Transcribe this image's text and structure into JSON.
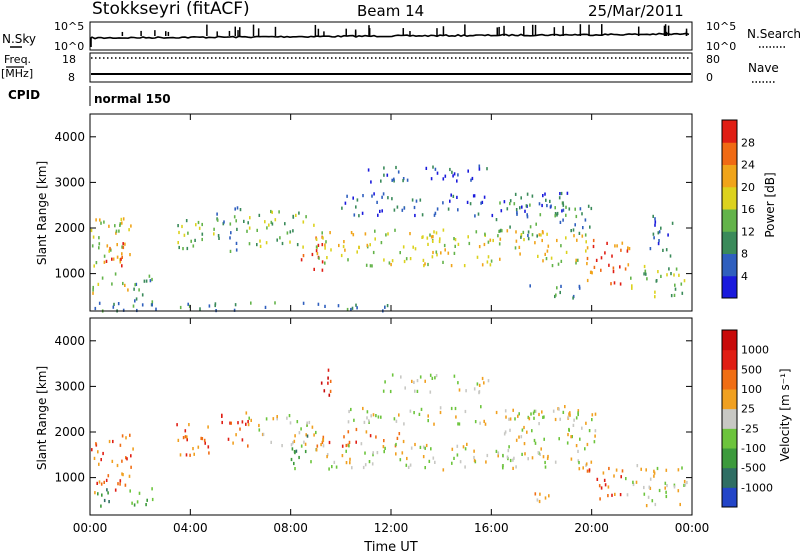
{
  "header": {
    "station": "Stokkseyri (fitACF)",
    "beam": "Beam 14",
    "date": "25/Mar/2011"
  },
  "panels": {
    "nsky": {
      "left_label": "N.Sky",
      "right_label": "N.Search",
      "left_ticks": [
        "10^5",
        "10^0"
      ],
      "right_ticks": [
        "10^5",
        "10^0"
      ]
    },
    "freq": {
      "left_label_1": "Freq.",
      "left_label_2": "[MHz]",
      "left_ticks": [
        "18",
        "8"
      ],
      "right_label": "Nave",
      "right_ticks": [
        "80",
        "0"
      ]
    },
    "cpid": {
      "label": "CPID",
      "value": "normal 150"
    }
  },
  "chart_data": [
    {
      "type": "heatmap",
      "name": "power",
      "ylabel": "Slant Range [km]",
      "xlabel": "",
      "x_ticks": [
        "00:00",
        "04:00",
        "08:00",
        "12:00",
        "16:00",
        "20:00",
        "00:00"
      ],
      "y_ticks": [
        1000,
        2000,
        3000,
        4000
      ],
      "xlim_hours": [
        0,
        24
      ],
      "ylim_km": [
        180,
        4500
      ],
      "colorbar": {
        "label": "Power [dB]",
        "ticks": [
          "4",
          "8",
          "12",
          "16",
          "20",
          "24",
          "28"
        ],
        "colors": [
          "#1a1adc",
          "#2f5fbe",
          "#3a8a5a",
          "#63b34a",
          "#dcd21e",
          "#f0a41a",
          "#f06a14",
          "#e01e14"
        ]
      },
      "bands": [
        {
          "t0": 0.0,
          "t1": 1.7,
          "r0": 600,
          "r1": 2300,
          "level": 4
        },
        {
          "t0": 0.6,
          "t1": 1.4,
          "r0": 1200,
          "r1": 1800,
          "level": 6
        },
        {
          "t0": 1.5,
          "t1": 2.6,
          "r0": 300,
          "r1": 1000,
          "level": 2
        },
        {
          "t0": 3.3,
          "t1": 5.1,
          "r0": 1500,
          "r1": 2200,
          "level": 3
        },
        {
          "t0": 5.0,
          "t1": 6.3,
          "r0": 1500,
          "r1": 2500,
          "level": 2
        },
        {
          "t0": 6.3,
          "t1": 8.9,
          "r0": 1600,
          "r1": 2400,
          "level": 3
        },
        {
          "t0": 8.4,
          "t1": 9.3,
          "r0": 1100,
          "r1": 1900,
          "level": 7
        },
        {
          "t0": 9.0,
          "t1": 20.0,
          "r0": 1200,
          "r1": 2000,
          "level": 4
        },
        {
          "t0": 10.0,
          "t1": 19.0,
          "r0": 2300,
          "r1": 2800,
          "level": 1
        },
        {
          "t0": 11.0,
          "t1": 16.0,
          "r0": 3000,
          "r1": 3400,
          "level": 1
        },
        {
          "t0": 16.0,
          "t1": 20.0,
          "r0": 1800,
          "r1": 2600,
          "level": 2
        },
        {
          "t0": 17.5,
          "t1": 19.5,
          "r0": 500,
          "r1": 800,
          "level": 2
        },
        {
          "t0": 19.8,
          "t1": 21.5,
          "r0": 700,
          "r1": 1800,
          "level": 6
        },
        {
          "t0": 21.5,
          "t1": 23.8,
          "r0": 500,
          "r1": 1200,
          "level": 3
        },
        {
          "t0": 22.3,
          "t1": 23.3,
          "r0": 1400,
          "r1": 2400,
          "level": 1
        },
        {
          "t0": 0.0,
          "t1": 12.0,
          "r0": 200,
          "r1": 400,
          "level": 2
        }
      ]
    },
    {
      "type": "heatmap",
      "name": "velocity",
      "ylabel": "Slant Range [km]",
      "xlabel": "Time UT",
      "x_ticks": [
        "00:00",
        "04:00",
        "08:00",
        "12:00",
        "16:00",
        "20:00",
        "00:00"
      ],
      "y_ticks": [
        1000,
        2000,
        3000,
        4000
      ],
      "xlim_hours": [
        0,
        24
      ],
      "ylim_km": [
        180,
        4500
      ],
      "colorbar": {
        "label": "Velocity [m s⁻¹]",
        "ticks": [
          "1000",
          "500",
          "100",
          "25",
          "-25",
          "-100",
          "-500",
          "-1000"
        ],
        "colors": [
          "#2345c8",
          "#2f6e64",
          "#3c9a3c",
          "#6cc43c",
          "#c8c8c4",
          "#f0a020",
          "#f06e14",
          "#e01e14",
          "#c80a0a"
        ]
      },
      "bands": [
        {
          "t0": 0.0,
          "t1": 1.7,
          "r0": 700,
          "r1": 2000,
          "level": 6
        },
        {
          "t0": 0.0,
          "t1": 0.8,
          "r0": 400,
          "r1": 900,
          "level": 2
        },
        {
          "t0": 1.2,
          "t1": 2.5,
          "r0": 400,
          "r1": 800,
          "level": 3
        },
        {
          "t0": 3.3,
          "t1": 5.1,
          "r0": 1500,
          "r1": 2200,
          "level": 6
        },
        {
          "t0": 5.0,
          "t1": 6.3,
          "r0": 1700,
          "r1": 2500,
          "level": 6
        },
        {
          "t0": 6.3,
          "t1": 9.0,
          "r0": 1700,
          "r1": 2400,
          "level": 4
        },
        {
          "t0": 8.0,
          "t1": 9.0,
          "r0": 1200,
          "r1": 2000,
          "level": 2
        },
        {
          "t0": 9.0,
          "t1": 12.5,
          "r0": 1700,
          "r1": 2100,
          "level": 6
        },
        {
          "t0": 9.0,
          "t1": 20.0,
          "r0": 1200,
          "r1": 1800,
          "level": 4
        },
        {
          "t0": 10.0,
          "t1": 19.5,
          "r0": 2200,
          "r1": 2600,
          "level": 4
        },
        {
          "t0": 11.5,
          "t1": 16.0,
          "r0": 2900,
          "r1": 3300,
          "level": 4
        },
        {
          "t0": 9.2,
          "t1": 9.7,
          "r0": 2600,
          "r1": 3500,
          "level": 7
        },
        {
          "t0": 16.5,
          "t1": 20.2,
          "r0": 1800,
          "r1": 2500,
          "level": 4
        },
        {
          "t0": 17.5,
          "t1": 18.6,
          "r0": 500,
          "r1": 800,
          "level": 5
        },
        {
          "t0": 19.8,
          "t1": 21.3,
          "r0": 500,
          "r1": 1300,
          "level": 6
        },
        {
          "t0": 21.3,
          "t1": 23.8,
          "r0": 400,
          "r1": 1300,
          "level": 4
        }
      ]
    }
  ]
}
